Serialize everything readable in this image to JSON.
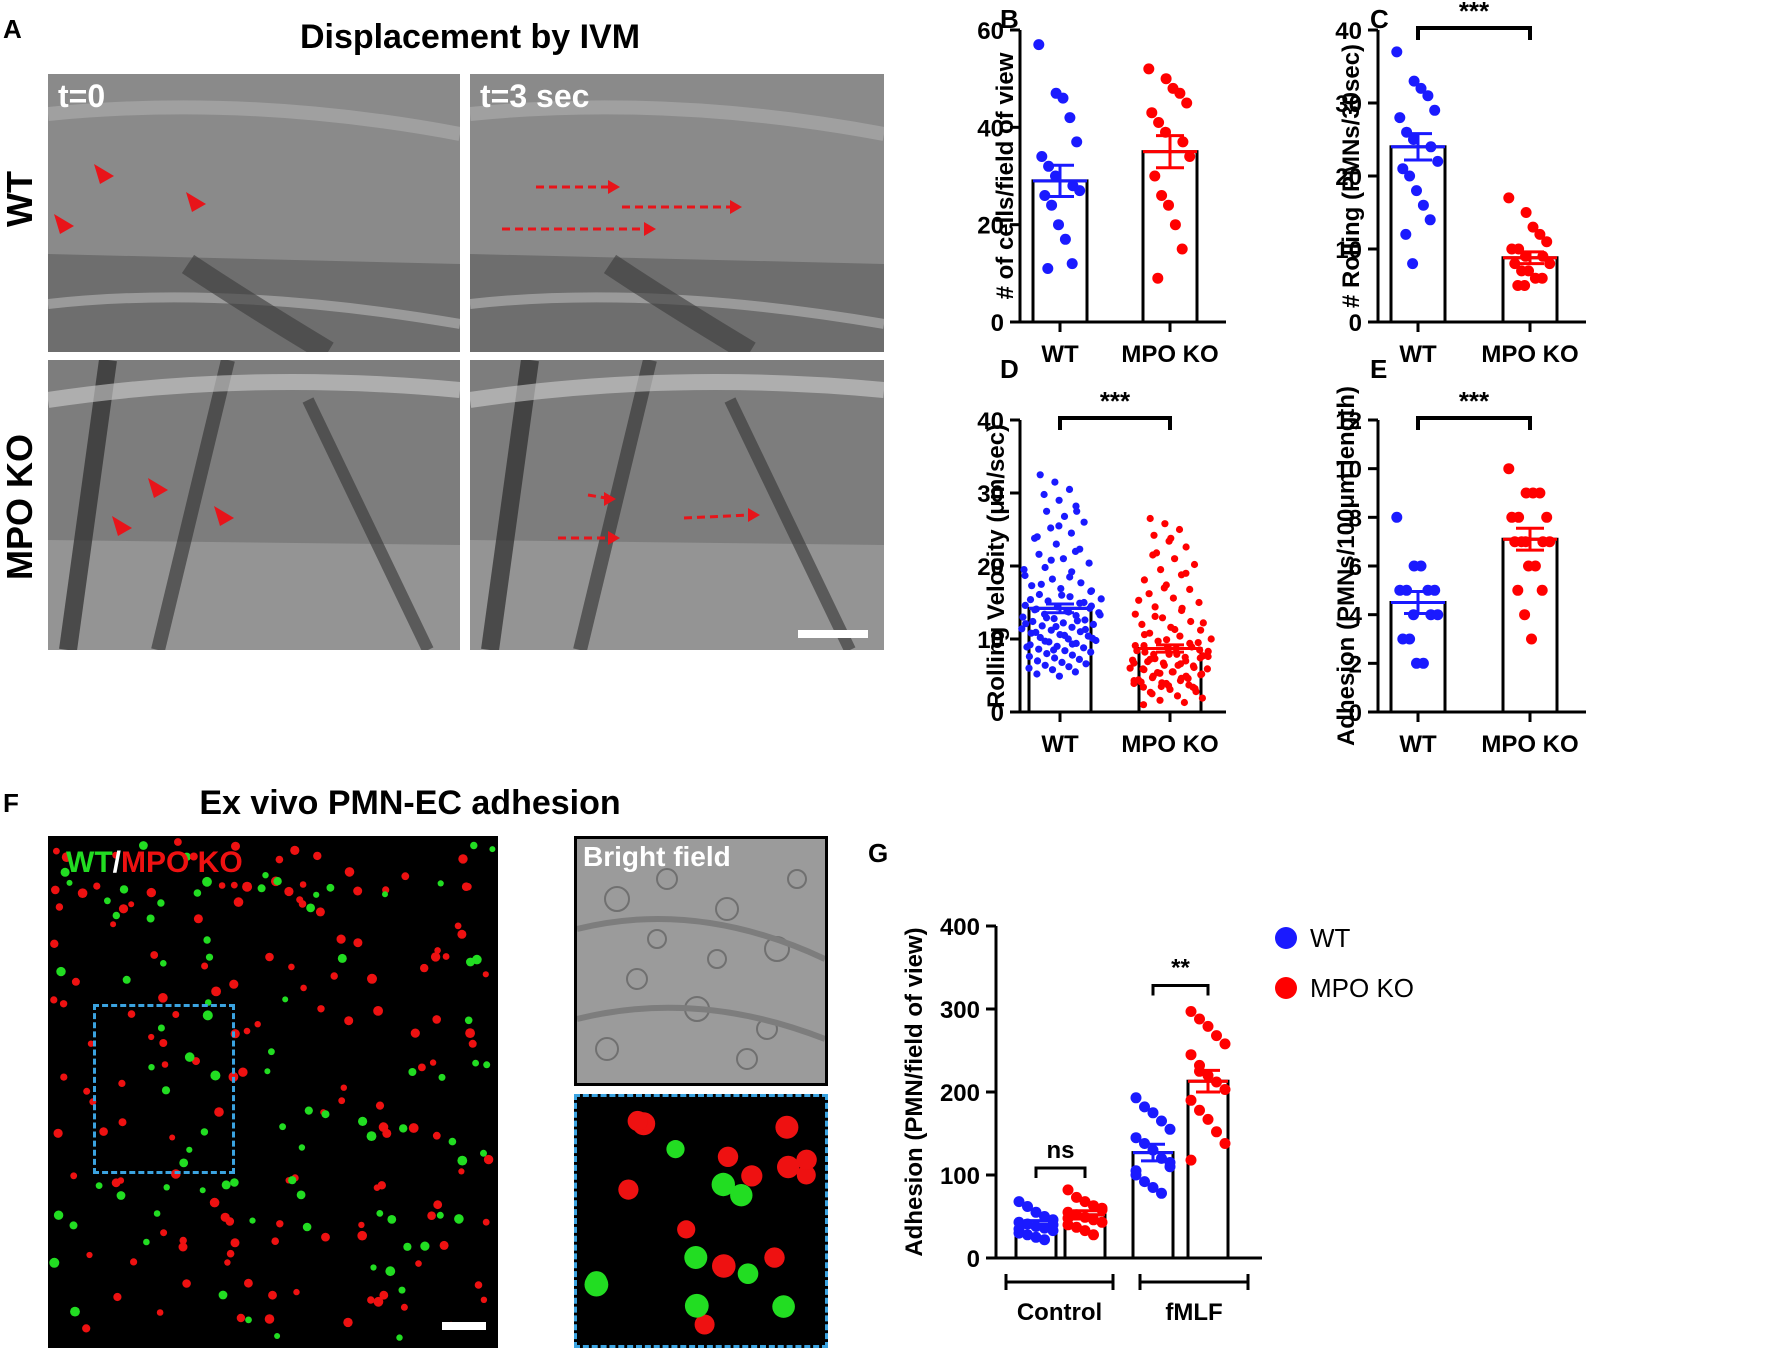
{
  "panels": {
    "A": {
      "letter": "A",
      "title": "Displacement by IVM",
      "row_labels": [
        "WT",
        "MPO KO"
      ],
      "frame_labels": [
        "t=0",
        "t=3 sec"
      ],
      "arrow_color": "#e8141a"
    },
    "F": {
      "letter": "F",
      "title": "Ex vivo PMN-EC adhesion",
      "legend_wt": "WT",
      "legend_sep": "/",
      "legend_ko": "MPO KO",
      "bright_label": "Bright field",
      "wt_color": "#22dd22",
      "ko_color": "#ee1111",
      "box_color": "#3ba3e0"
    }
  },
  "colors": {
    "wt": "#1a1aff",
    "ko": "#ff0000"
  },
  "chart_data": [
    {
      "id": "B",
      "letter": "B",
      "type": "bar",
      "categories": [
        "WT",
        "MPO KO"
      ],
      "values": [
        29,
        35
      ],
      "errors": [
        3.2,
        3.3
      ],
      "ylabel": "# of cells/field of view",
      "ylim": [
        0,
        60
      ],
      "yticks": [
        0,
        20,
        40,
        60
      ],
      "points": [
        [
          57,
          47,
          46,
          42,
          37,
          34,
          32,
          30,
          28,
          27,
          26,
          24,
          20,
          17,
          12,
          11
        ],
        [
          52,
          50,
          48,
          47,
          45,
          43,
          41,
          39,
          37,
          34,
          30,
          26,
          24,
          20,
          15,
          9
        ]
      ],
      "sig": null
    },
    {
      "id": "C",
      "letter": "C",
      "type": "bar",
      "categories": [
        "WT",
        "MPO KO"
      ],
      "values": [
        24,
        8.8
      ],
      "errors": [
        1.8,
        0.8
      ],
      "ylabel": "# Rolling (PMNs/30sec)",
      "ylim": [
        0,
        40
      ],
      "yticks": [
        0,
        10,
        20,
        30,
        40
      ],
      "points": [
        [
          37,
          33,
          32,
          31,
          29,
          28,
          26,
          25,
          24,
          22,
          21,
          20,
          18,
          16,
          14,
          12,
          8
        ],
        [
          17,
          15,
          13,
          12,
          11,
          10,
          10,
          9,
          9,
          8,
          8,
          7,
          7,
          6,
          6,
          5,
          5
        ]
      ],
      "sig": "***"
    },
    {
      "id": "D",
      "letter": "D",
      "type": "bar",
      "categories": [
        "WT",
        "MPO KO"
      ],
      "values": [
        14.2,
        8.7
      ],
      "errors": [
        0.6,
        0.5
      ],
      "ylabel": "Rolling Velocity (μm/sec)",
      "ylim": [
        0,
        40
      ],
      "yticks": [
        0,
        10,
        20,
        30,
        40
      ],
      "points": [
        [
          32.5,
          31.5,
          30.5,
          29.8,
          29,
          28.2,
          27.5,
          26.8,
          26,
          25.2,
          24.5,
          23.8,
          23,
          22.3,
          21.6,
          21,
          20.4,
          19.8,
          19.2,
          18.7,
          18.2,
          17.7,
          17.3,
          16.9,
          16.5,
          16.1,
          15.8,
          15.5,
          15.2,
          14.9,
          14.6,
          14.4,
          14.2,
          14,
          13.8,
          13.6,
          13.4,
          13.2,
          13,
          12.8,
          12.6,
          12.4,
          12.2,
          12,
          11.8,
          11.6,
          11.4,
          11.2,
          11,
          10.8,
          10.6,
          10.4,
          10.2,
          10,
          9.8,
          9.6,
          9.4,
          9.2,
          9,
          8.8,
          8.6,
          8.4,
          8.2,
          8,
          7.8,
          7.6,
          7.4,
          7.2,
          7,
          6.8,
          6.6,
          6.4,
          6.2,
          6,
          5.8,
          5.5,
          5.2,
          4.9,
          14.5,
          14.1,
          13.7,
          13.3,
          12.9,
          12.5,
          12.1,
          11.7,
          11.3,
          10.9,
          10.5,
          10.1,
          9.7,
          9.3,
          8.9,
          8.5,
          15,
          15.4,
          16,
          16.6,
          17.5,
          18.5,
          19.5,
          20.8,
          22,
          24,
          25.5,
          27.5
        ],
        [
          26.5,
          25.8,
          25,
          24.2,
          23.4,
          22.6,
          21.8,
          21,
          20.2,
          19.5,
          18.8,
          18.1,
          17.4,
          16.8,
          16.2,
          15.6,
          15,
          14.4,
          13.9,
          13.4,
          12.9,
          12.4,
          12,
          11.6,
          11.2,
          10.8,
          10.4,
          10,
          9.7,
          9.4,
          9.1,
          8.8,
          8.5,
          8.2,
          7.9,
          7.6,
          7.3,
          7,
          6.7,
          6.4,
          6.1,
          5.8,
          5.5,
          5.2,
          4.9,
          4.6,
          4.3,
          4,
          3.7,
          3.4,
          3.1,
          2.8,
          2.5,
          2.2,
          1.9,
          1.6,
          1.3,
          1,
          9.9,
          9.5,
          9.1,
          8.7,
          8.3,
          7.9,
          7.5,
          7.1,
          6.7,
          6.3,
          5.9,
          5.5,
          5.1,
          4.7,
          4.3,
          3.9,
          3.5,
          8.9,
          8.4,
          7.9,
          7.4,
          6.9,
          6.4,
          5.9,
          5.4,
          4.9,
          4.4,
          3.9,
          3.4,
          10.6,
          11.3,
          12.2,
          13.1,
          14.2,
          15.3,
          17,
          19,
          21.5,
          23.8,
          7.7,
          7.2,
          6.6,
          6,
          5.3,
          4.6,
          4.1,
          3.6,
          3.2,
          2.7
        ]
      ],
      "sig": "***"
    },
    {
      "id": "E",
      "letter": "E",
      "type": "bar",
      "categories": [
        "WT",
        "MPO KO"
      ],
      "values": [
        4.5,
        7.1
      ],
      "errors": [
        0.45,
        0.45
      ],
      "ylabel": "Adhesion (PMNs/100μm length)",
      "ylim": [
        0,
        12
      ],
      "yticks": [
        0,
        2,
        4,
        6,
        8,
        10,
        12
      ],
      "points": [
        [
          8,
          6,
          6,
          5,
          5,
          5,
          5,
          4,
          4,
          4,
          3,
          3,
          2,
          2
        ],
        [
          10,
          9,
          9,
          9,
          8,
          8,
          8,
          7,
          7,
          7,
          7,
          7,
          6,
          6,
          5,
          5,
          4,
          3
        ]
      ],
      "sig": "***"
    },
    {
      "id": "G",
      "letter": "G",
      "type": "bar",
      "groups": [
        "Control",
        "fMLF"
      ],
      "series": [
        {
          "name": "WT",
          "values": [
            41,
            127
          ],
          "errors": [
            4,
            10
          ],
          "points": [
            [
              68,
              62,
              55,
              50,
              46,
              43,
              41,
              38,
              36,
              33,
              30,
              28,
              25,
              22,
              40,
              35
            ],
            [
              193,
              182,
              175,
              165,
              155,
              145,
              138,
              130,
              120,
              110,
              100,
              92,
              85,
              78,
              115,
              105
            ]
          ]
        },
        {
          "name": "MPO KO",
          "values": [
            52,
            213
          ],
          "errors": [
            5,
            13
          ],
          "points": [
            [
              82,
              73,
              68,
              63,
              58,
              55,
              52,
              49,
              46,
              43,
              40,
              37,
              33,
              28,
              60,
              48
            ],
            [
              297,
              288,
              279,
              268,
              258,
              245,
              232,
              220,
              212,
              203,
              190,
              178,
              167,
              152,
              138,
              118,
              225
            ]
          ]
        }
      ],
      "ylabel": "Adhesion (PMN/field of view)",
      "ylim": [
        0,
        400
      ],
      "yticks": [
        0,
        100,
        200,
        300,
        400
      ],
      "sig": [
        "ns",
        "**"
      ],
      "legend": [
        "WT",
        "MPO KO"
      ]
    }
  ]
}
